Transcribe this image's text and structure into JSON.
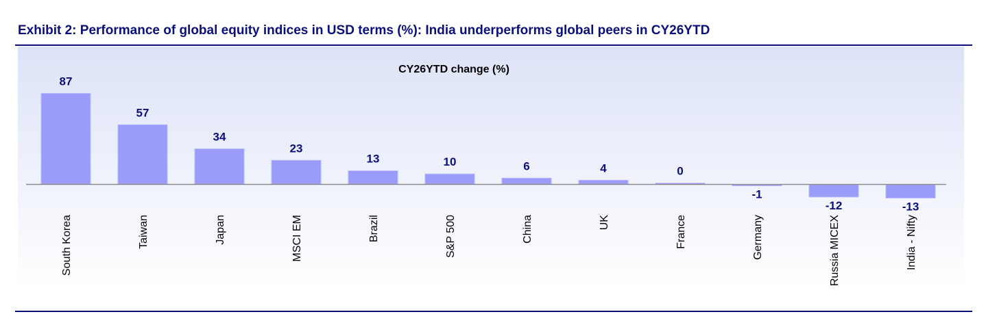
{
  "exhibit_title": "Exhibit 2: Performance of global equity indices in USD terms (%): India underperforms global peers in CY26YTD",
  "colors": {
    "bar_fill": "#9b9cf9",
    "bar_top": "#b7b8fb",
    "label_text": "#0b0f7a",
    "rule": "#0b0f7a",
    "axis": "#8c8c8c"
  },
  "chart_data": {
    "type": "bar",
    "title": "CY26YTD change (%)",
    "xlabel": "",
    "ylabel": "",
    "categories": [
      "South Korea",
      "Taiwan",
      "Japan",
      "MSCI EM",
      "Brazil",
      "S&P 500",
      "China",
      "UK",
      "France",
      "Germany",
      "Russia MICEX",
      "India - Nifty"
    ],
    "values": [
      87,
      57,
      34,
      23,
      13,
      10,
      6,
      4,
      0,
      -1,
      -12,
      -13
    ],
    "value_labels": [
      "87",
      "57",
      "34",
      "23",
      "13",
      "10",
      "6",
      "4",
      "0",
      "-1",
      "-12",
      "-13"
    ],
    "ylim": [
      -13,
      87
    ],
    "grid": false,
    "legend": "none"
  }
}
